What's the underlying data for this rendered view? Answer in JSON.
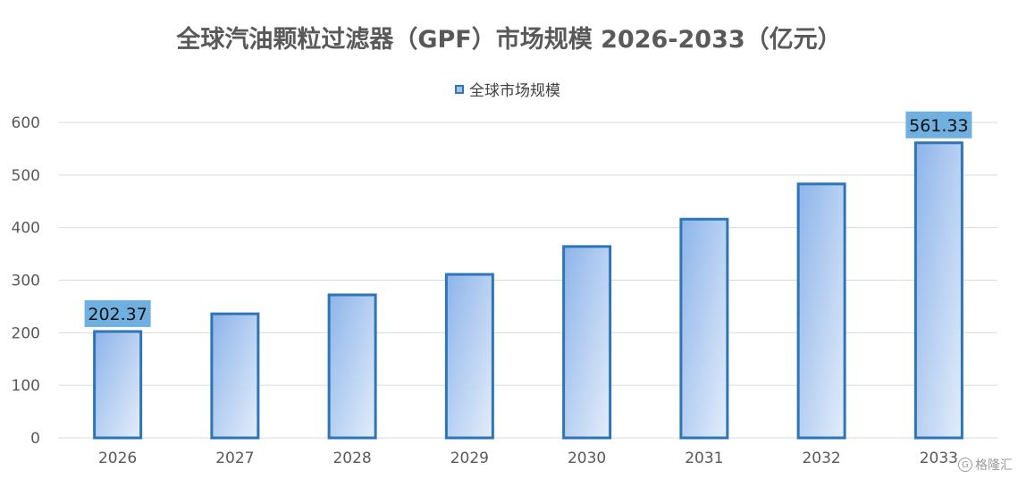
{
  "chart_data": {
    "type": "bar",
    "title": "全球汽油颗粒过滤器（GPF）市场规模 2026-2033（亿元）",
    "categories": [
      "2026",
      "2027",
      "2028",
      "2029",
      "2030",
      "2031",
      "2032",
      "2033"
    ],
    "series": [
      {
        "name": "全球市场规模",
        "values": [
          202.37,
          236,
          272,
          311,
          364,
          416,
          483,
          561.33
        ]
      }
    ],
    "data_labels": [
      {
        "category": "2026",
        "text": "202.37"
      },
      {
        "category": "2033",
        "text": "561.33"
      }
    ],
    "ylim": [
      0,
      600
    ],
    "yticks": [
      0,
      100,
      200,
      300,
      400,
      500,
      600
    ],
    "xlabel": "",
    "ylabel": "",
    "grid": true,
    "legend_position": "top",
    "colors": {
      "bar_stroke": "#2e75b6",
      "bar_fill_start": "#8db4ea",
      "bar_fill_end": "#e3edfa",
      "label_bg": "#6fb0e0",
      "grid": "#d9d9d9"
    }
  },
  "watermark": {
    "text": "格隆汇",
    "icon": "logo-g-icon",
    "glyph": "G"
  }
}
